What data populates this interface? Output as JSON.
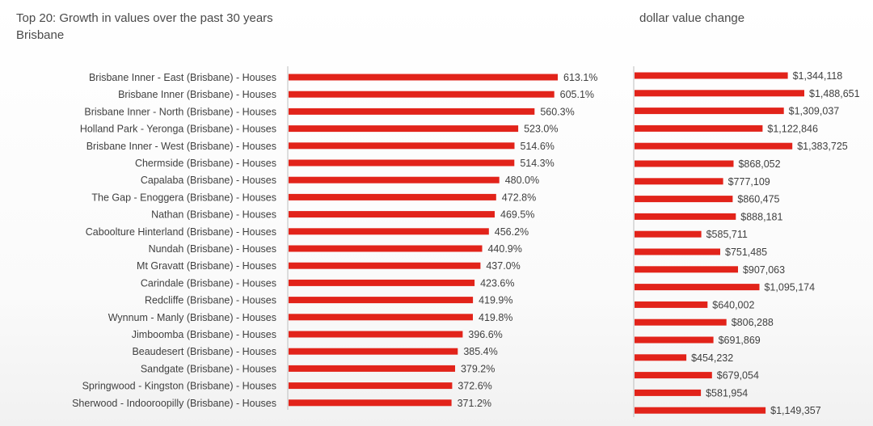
{
  "header": {
    "title_line1": "Top 20:  Growth in values over the past 30 years",
    "title_line2": "Brisbane",
    "right_title": "dollar value change"
  },
  "colors": {
    "bar": "#e2231a",
    "axis": "#bdbdbd",
    "label": "#404040"
  },
  "chart_data": [
    {
      "type": "bar",
      "orientation": "horizontal",
      "title": "Top 20:  Growth in values over the past 30 years",
      "subtitle": "Brisbane",
      "categories": [
        "Brisbane Inner - East (Brisbane) - Houses",
        "Brisbane Inner (Brisbane) - Houses",
        "Brisbane Inner - North (Brisbane) - Houses",
        "Holland Park - Yeronga (Brisbane) - Houses",
        "Brisbane Inner - West (Brisbane) - Houses",
        "Chermside (Brisbane) - Houses",
        "Capalaba (Brisbane) - Houses",
        "The Gap - Enoggera (Brisbane) - Houses",
        "Nathan (Brisbane) - Houses",
        "Caboolture Hinterland (Brisbane) - Houses",
        "Nundah (Brisbane) - Houses",
        "Mt Gravatt (Brisbane) - Houses",
        "Carindale (Brisbane) - Houses",
        "Redcliffe (Brisbane) - Houses",
        "Wynnum - Manly (Brisbane) - Houses",
        "Jimboomba (Brisbane) - Houses",
        "Beaudesert (Brisbane) - Houses",
        "Sandgate (Brisbane) - Houses",
        "Springwood - Kingston (Brisbane) - Houses",
        "Sherwood - Indooroopilly (Brisbane) - Houses"
      ],
      "values": [
        613.1,
        605.1,
        560.3,
        523.0,
        514.6,
        514.3,
        480.0,
        472.8,
        469.5,
        456.2,
        440.9,
        437.0,
        423.6,
        419.9,
        419.8,
        396.6,
        385.4,
        379.2,
        372.6,
        371.2
      ],
      "labels": [
        "613.1%",
        "605.1%",
        "560.3%",
        "523.0%",
        "514.6%",
        "514.3%",
        "480.0%",
        "472.8%",
        "469.5%",
        "456.2%",
        "440.9%",
        "437.0%",
        "423.6%",
        "419.9%",
        "419.8%",
        "396.6%",
        "385.4%",
        "379.2%",
        "372.6%",
        "371.2%"
      ],
      "xlim": [
        0,
        613.1
      ],
      "grid": false,
      "legend": "none"
    },
    {
      "type": "bar",
      "orientation": "horizontal",
      "title": "dollar value change",
      "values": [
        1344118,
        1488651,
        1309037,
        1122846,
        1383725,
        868052,
        777109,
        860475,
        888181,
        585711,
        751485,
        907063,
        1095174,
        640002,
        806288,
        691869,
        454232,
        679054,
        581954,
        1149357
      ],
      "labels": [
        "$1,344,118",
        "$1,488,651",
        "$1,309,037",
        "$1,122,846",
        "$1,383,725",
        "$868,052",
        "$777,109",
        "$860,475",
        "$888,181",
        "$585,711",
        "$751,485",
        "$907,063",
        "$1,095,174",
        "$640,002",
        "$806,288",
        "$691,869",
        "$454,232",
        "$679,054",
        "$581,954",
        "$1,149,357"
      ],
      "xlim": [
        0,
        1488651
      ],
      "grid": false,
      "legend": "none"
    }
  ]
}
